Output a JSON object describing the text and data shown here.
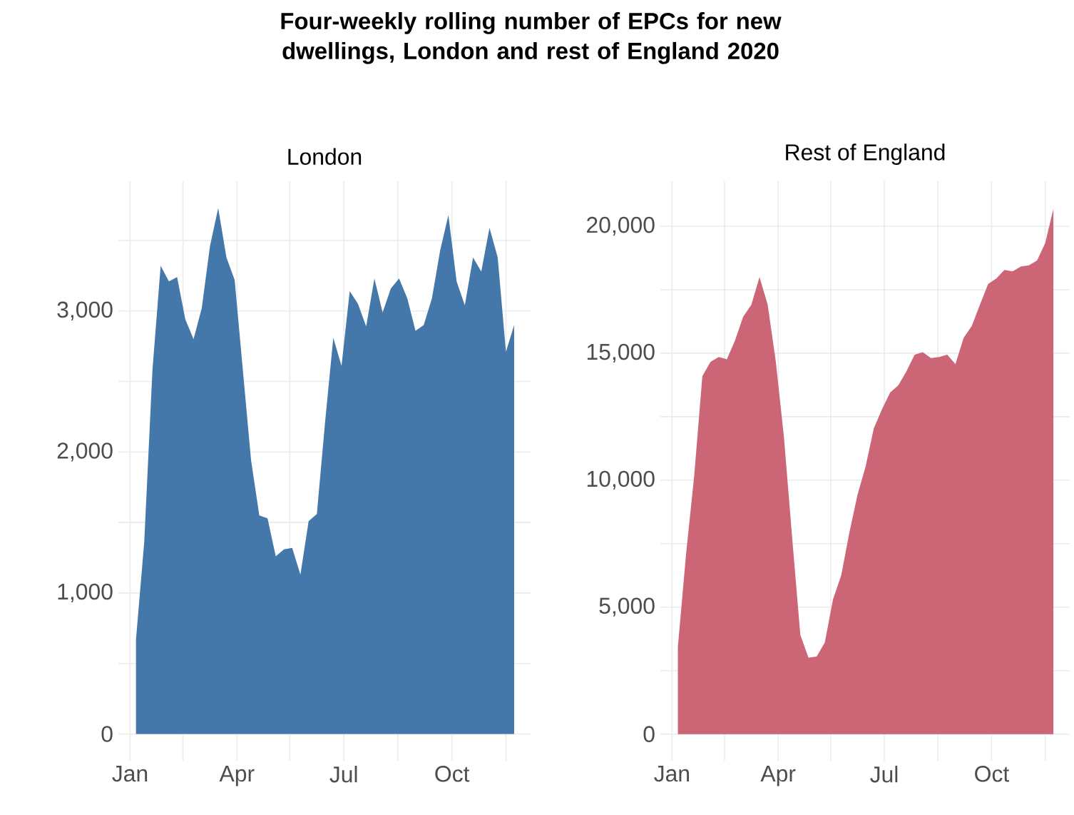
{
  "chart_data": [
    {
      "type": "area",
      "title": "Four-weekly rolling number of EPCs for new dwellings, London and rest of England 2020",
      "subtitle": "London",
      "color": "#4477aa",
      "grid": true,
      "x": [
        "2020-01-06",
        "2020-01-13",
        "2020-01-20",
        "2020-01-27",
        "2020-02-03",
        "2020-02-10",
        "2020-02-17",
        "2020-02-24",
        "2020-03-02",
        "2020-03-09",
        "2020-03-16",
        "2020-03-23",
        "2020-03-30",
        "2020-04-06",
        "2020-04-13",
        "2020-04-20",
        "2020-04-27",
        "2020-05-04",
        "2020-05-11",
        "2020-05-18",
        "2020-05-25",
        "2020-06-01",
        "2020-06-08",
        "2020-06-15",
        "2020-06-22",
        "2020-06-29",
        "2020-07-06",
        "2020-07-13",
        "2020-07-20",
        "2020-07-27",
        "2020-08-03",
        "2020-08-10",
        "2020-08-17",
        "2020-08-24",
        "2020-08-31",
        "2020-09-07",
        "2020-09-14",
        "2020-09-21",
        "2020-09-28",
        "2020-10-05",
        "2020-10-12",
        "2020-10-19",
        "2020-10-26",
        "2020-11-02",
        "2020-11-09",
        "2020-11-16",
        "2020-11-23"
      ],
      "values": [
        670,
        1360,
        2580,
        3320,
        3210,
        3240,
        2940,
        2800,
        3020,
        3460,
        3730,
        3380,
        3220,
        2580,
        1940,
        1550,
        1530,
        1260,
        1310,
        1320,
        1130,
        1510,
        1560,
        2210,
        2810,
        2610,
        3140,
        3050,
        2890,
        3230,
        2990,
        3160,
        3230,
        3090,
        2860,
        2900,
        3090,
        3430,
        3680,
        3210,
        3040,
        3380,
        3280,
        3590,
        3380,
        2710,
        2900
      ],
      "xlim": [
        "2019-12-22",
        "2020-12-07"
      ],
      "xticks": [
        {
          "value": "2020-01-01",
          "label": "Jan"
        },
        {
          "value": "2020-02-15",
          "label": null
        },
        {
          "value": "2020-04-01",
          "label": "Apr"
        },
        {
          "value": "2020-05-16",
          "label": null
        },
        {
          "value": "2020-07-01",
          "label": "Jul"
        },
        {
          "value": "2020-08-16",
          "label": null
        },
        {
          "value": "2020-10-01",
          "label": "Oct"
        },
        {
          "value": "2020-11-16",
          "label": null
        }
      ],
      "ylim": [
        -190,
        3920
      ],
      "yticks": [
        0,
        {
          "value": 500,
          "label": null
        },
        {
          "value": 1000,
          "label": "1,000"
        },
        {
          "value": 1500,
          "label": null
        },
        {
          "value": 2000,
          "label": "2,000"
        },
        {
          "value": 2500,
          "label": null
        },
        {
          "value": 3000,
          "label": "3,000"
        },
        {
          "value": 3500,
          "label": null
        }
      ]
    },
    {
      "type": "area",
      "subtitle": "Rest of England",
      "color": "#cc6677",
      "grid": true,
      "x": [
        "2020-01-06",
        "2020-01-13",
        "2020-01-20",
        "2020-01-27",
        "2020-02-03",
        "2020-02-10",
        "2020-02-17",
        "2020-02-24",
        "2020-03-02",
        "2020-03-09",
        "2020-03-16",
        "2020-03-23",
        "2020-03-30",
        "2020-04-06",
        "2020-04-13",
        "2020-04-20",
        "2020-04-27",
        "2020-05-04",
        "2020-05-11",
        "2020-05-18",
        "2020-05-25",
        "2020-06-01",
        "2020-06-08",
        "2020-06-15",
        "2020-06-22",
        "2020-06-29",
        "2020-07-06",
        "2020-07-13",
        "2020-07-20",
        "2020-07-27",
        "2020-08-03",
        "2020-08-10",
        "2020-08-17",
        "2020-08-24",
        "2020-08-31",
        "2020-09-07",
        "2020-09-14",
        "2020-09-21",
        "2020-09-28",
        "2020-10-05",
        "2020-10-12",
        "2020-10-19",
        "2020-10-26",
        "2020-11-02",
        "2020-11-09",
        "2020-11-16",
        "2020-11-23"
      ],
      "values": [
        3430,
        7080,
        10170,
        14100,
        14660,
        14850,
        14760,
        15500,
        16440,
        16910,
        18000,
        16910,
        14660,
        11670,
        7730,
        3900,
        3010,
        3050,
        3610,
        5300,
        6240,
        7920,
        9420,
        10540,
        12040,
        12790,
        13450,
        13730,
        14290,
        14940,
        15040,
        14810,
        14850,
        14940,
        14570,
        15600,
        16070,
        16910,
        17720,
        17940,
        18280,
        18220,
        18410,
        18460,
        18650,
        19340,
        20690
      ],
      "xlim": [
        "2019-12-22",
        "2020-12-07"
      ],
      "xticks": [
        {
          "value": "2020-01-01",
          "label": "Jan"
        },
        {
          "value": "2020-02-15",
          "label": null
        },
        {
          "value": "2020-04-01",
          "label": "Apr"
        },
        {
          "value": "2020-05-16",
          "label": null
        },
        {
          "value": "2020-07-01",
          "label": "Jul"
        },
        {
          "value": "2020-08-16",
          "label": null
        },
        {
          "value": "2020-10-01",
          "label": "Oct"
        },
        {
          "value": "2020-11-16",
          "label": null
        }
      ],
      "ylim": [
        -1050,
        21770
      ],
      "yticks": [
        0,
        {
          "value": 2500,
          "label": null
        },
        {
          "value": 5000,
          "label": "5,000"
        },
        {
          "value": 7500,
          "label": null
        },
        {
          "value": 10000,
          "label": "10,000"
        },
        {
          "value": 12500,
          "label": null
        },
        {
          "value": 15000,
          "label": "15,000"
        },
        {
          "value": 17500,
          "label": null
        },
        {
          "value": 20000,
          "label": "20,000"
        }
      ]
    }
  ]
}
